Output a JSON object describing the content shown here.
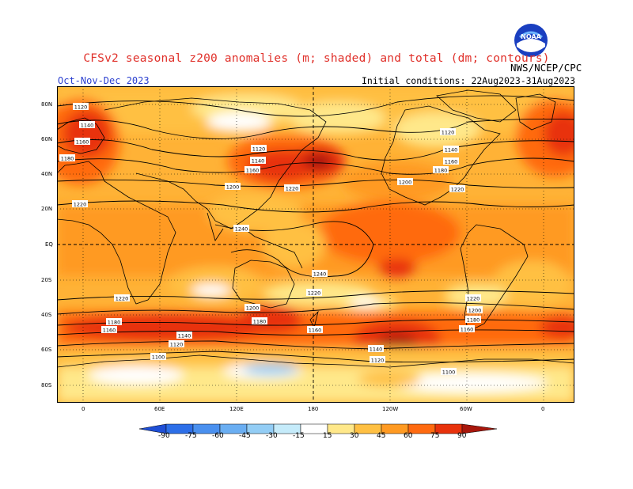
{
  "title": "CFSv2 seasonal z200 anomalies (m; shaded) and total (dm; contours)",
  "season": "Oct-Nov-Dec 2023",
  "initial_conditions": "Initial conditions: 22Aug2023-31Aug2023",
  "agency": "NWS/NCEP/CPC",
  "logo_text": "NOAA",
  "lat_labels": [
    "80N",
    "60N",
    "40N",
    "20N",
    "EQ",
    "20S",
    "40S",
    "60S",
    "80S"
  ],
  "lon_labels": [
    "0",
    "60E",
    "120E",
    "180",
    "120W",
    "60W",
    "0"
  ],
  "colorbar": {
    "labels": [
      "-90",
      "-75",
      "-60",
      "-45",
      "-30",
      "-15",
      "15",
      "30",
      "45",
      "60",
      "75",
      "90"
    ],
    "colors": [
      "#1f4fd6",
      "#2d6fe8",
      "#4a90ef",
      "#6aaef2",
      "#93cdf5",
      "#c5ebfa",
      "#ffffff",
      "#ffe88a",
      "#ffc043",
      "#ff9a22",
      "#ff6a10",
      "#e8320c",
      "#a8170c"
    ]
  },
  "contour_labels": [
    "1120",
    "1140",
    "1160",
    "1180",
    "1120",
    "1140",
    "1160",
    "1200",
    "1220",
    "1220",
    "1200",
    "1220",
    "1120",
    "1140",
    "1160",
    "1180",
    "1240",
    "1240",
    "1220",
    "1220",
    "1200",
    "1180",
    "1160",
    "1180",
    "1160",
    "1140",
    "1120",
    "1100",
    "1160",
    "1140",
    "1120",
    "1220",
    "1200",
    "1180",
    "1160",
    "1100"
  ]
}
